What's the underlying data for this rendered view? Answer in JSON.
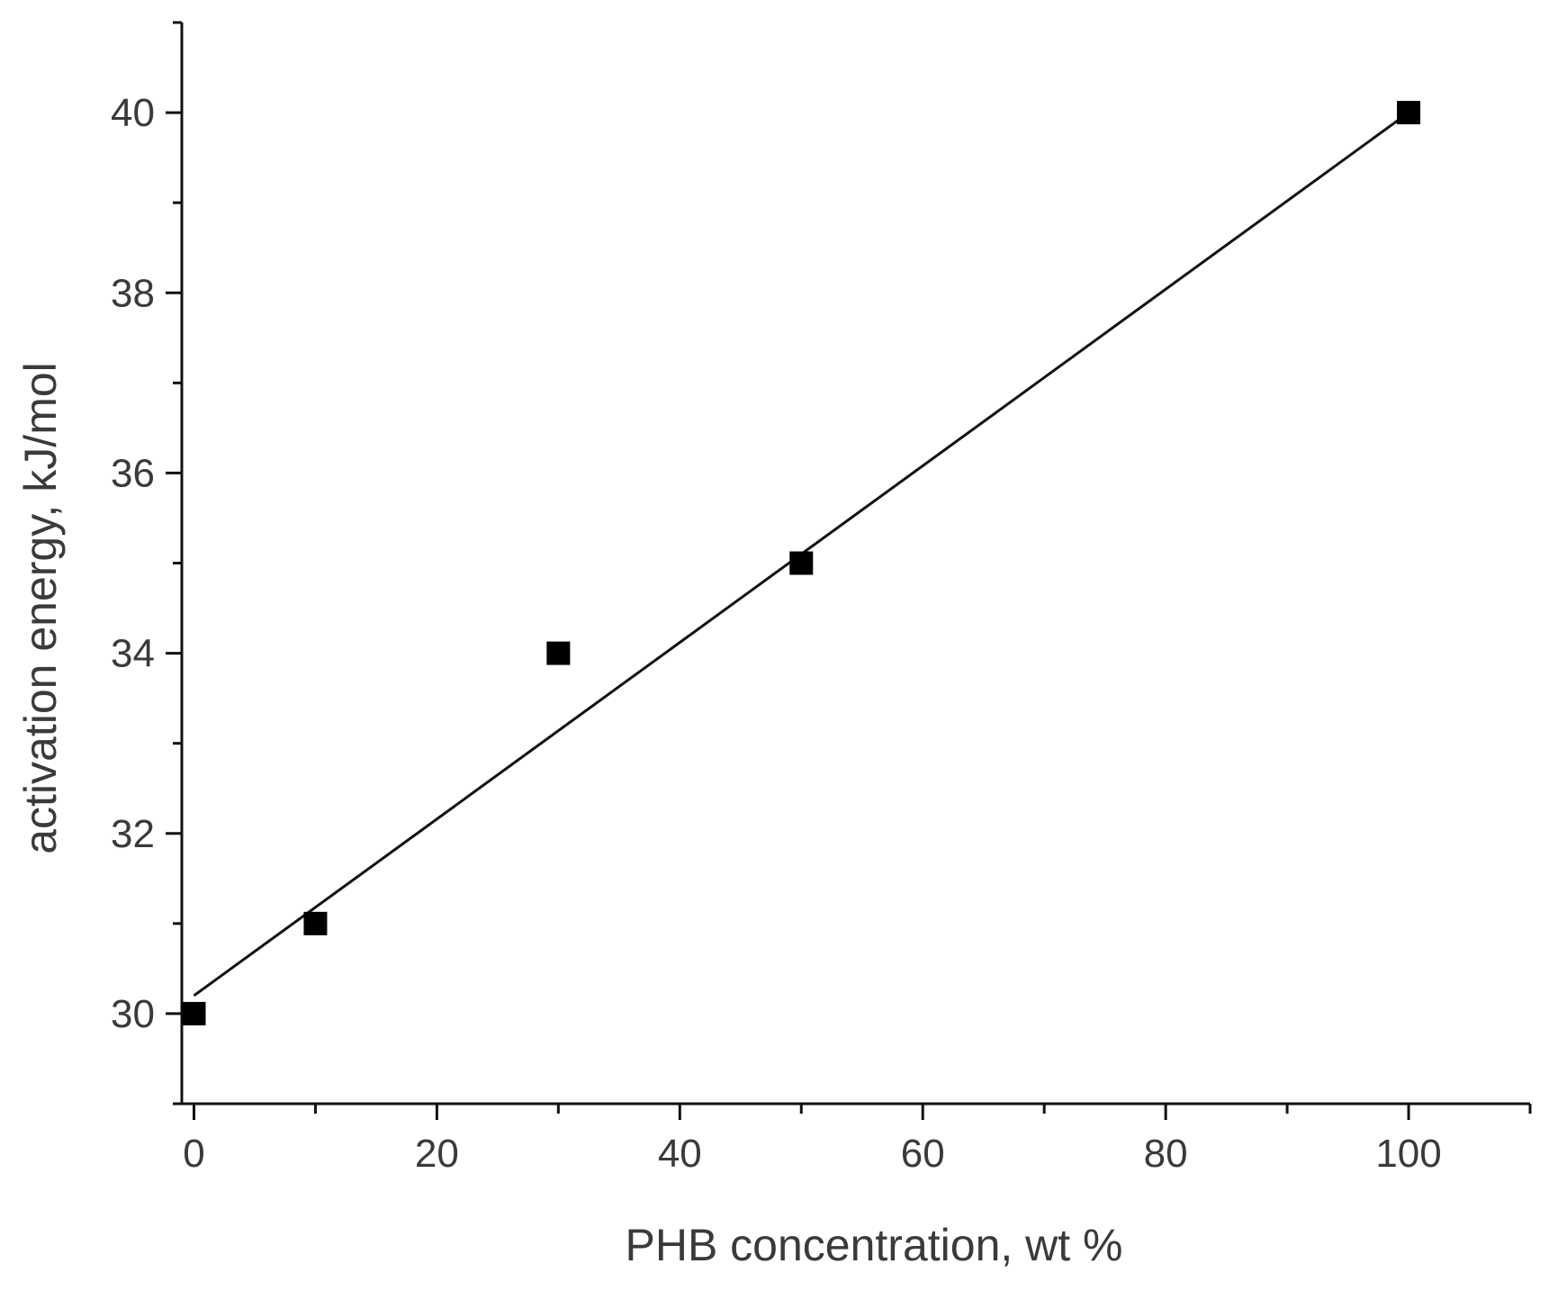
{
  "chart_data": {
    "type": "scatter",
    "title": "",
    "xlabel": "PHB concentration, wt %",
    "ylabel": "activation energy, kJ/mol",
    "xlim": [
      -1,
      110
    ],
    "ylim": [
      29,
      41
    ],
    "x_ticks": [
      0,
      20,
      40,
      60,
      80,
      100
    ],
    "y_ticks": [
      30,
      32,
      34,
      36,
      38,
      40
    ],
    "x_tick_labels": [
      "0",
      "20",
      "40",
      "60",
      "80",
      "100"
    ],
    "y_tick_labels": [
      "30",
      "32",
      "34",
      "36",
      "38",
      "40"
    ],
    "grid": false,
    "legend": "none",
    "series": [
      {
        "marker": "square",
        "color": "#000000",
        "x": [
          0,
          10,
          30,
          50,
          100
        ],
        "y": [
          30,
          31,
          34,
          35,
          40
        ]
      }
    ],
    "fit_line": {
      "style": "linear",
      "color": "#111111",
      "x": [
        0,
        100
      ],
      "y": [
        30.2,
        40.0
      ]
    }
  }
}
